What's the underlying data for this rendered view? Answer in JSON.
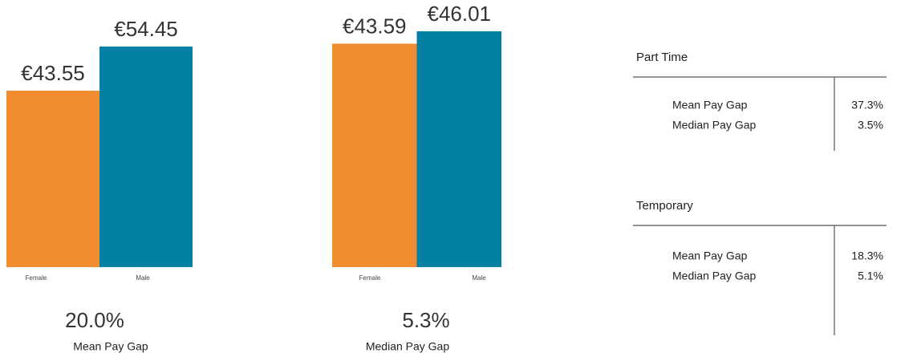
{
  "chart_data": [
    {
      "type": "bar",
      "categories": [
        "Female",
        "Male"
      ],
      "values": [
        43.55,
        54.45
      ],
      "value_labels": [
        "€43.55",
        "€54.45"
      ],
      "colors": [
        "#f28c30",
        "#0480a4"
      ],
      "summary": "20.0%",
      "caption": "Mean Pay Gap"
    },
    {
      "type": "bar",
      "categories": [
        "Female",
        "Male"
      ],
      "values": [
        43.59,
        46.01
      ],
      "value_labels": [
        "€43.59",
        "€46.01"
      ],
      "colors": [
        "#f28c30",
        "#0480a4"
      ],
      "summary": "5.3%",
      "caption": "Median Pay Gap"
    }
  ],
  "tables": [
    {
      "title": "Part Time",
      "rows": [
        [
          "Mean Pay Gap",
          "37.3%"
        ],
        [
          "Median Pay Gap",
          "3.5%"
        ]
      ]
    },
    {
      "title": "Temporary",
      "rows": [
        [
          "Mean Pay Gap",
          "18.3%"
        ],
        [
          "Median Pay Gap",
          "5.1%"
        ]
      ]
    }
  ]
}
